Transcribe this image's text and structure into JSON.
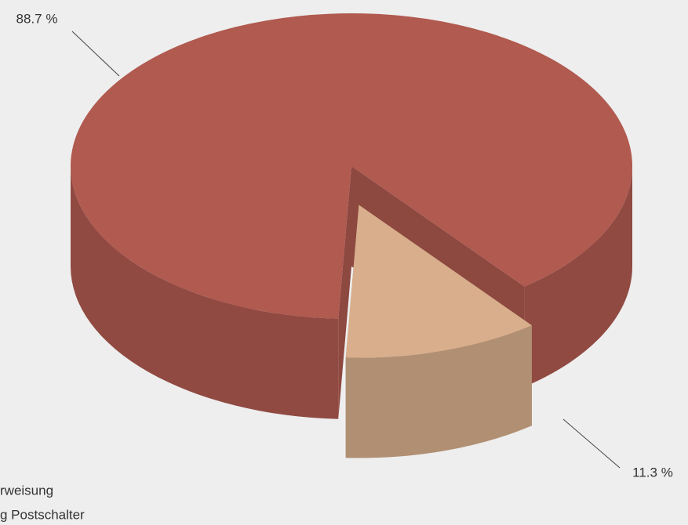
{
  "chart_data": {
    "type": "pie",
    "labels": [
      "rweisung",
      "g Postschalter"
    ],
    "values": [
      88.7,
      11.3
    ],
    "value_labels": [
      "88.7 %",
      "11.3 %"
    ],
    "colors": [
      "#b05a50",
      "#d8ae8c"
    ]
  }
}
